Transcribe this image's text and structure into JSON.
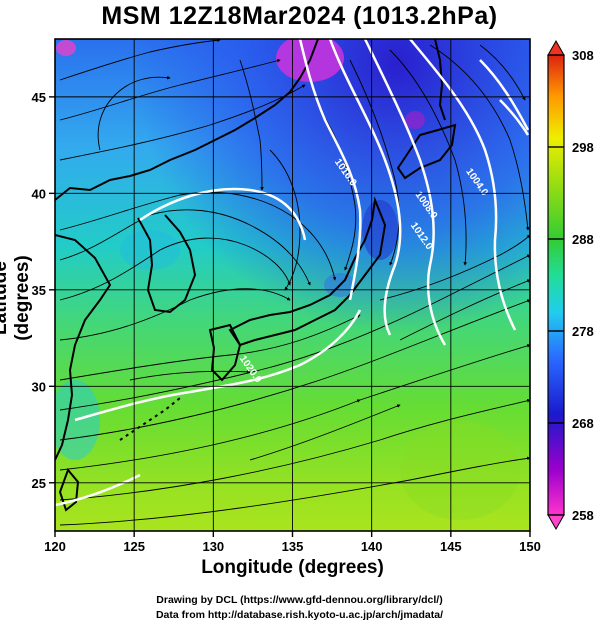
{
  "title": "MSM 12Z18Mar2024 (1013.2hPa)",
  "xlabel": "Longitude (degrees)",
  "ylabel": "Latitude  (degrees)",
  "x_ticks": [
    {
      "value": 120,
      "label": "120"
    },
    {
      "value": 125,
      "label": "125"
    },
    {
      "value": 130,
      "label": "130"
    },
    {
      "value": 135,
      "label": "135"
    },
    {
      "value": 140,
      "label": "140"
    },
    {
      "value": 145,
      "label": "145"
    },
    {
      "value": 150,
      "label": "150"
    }
  ],
  "y_ticks": [
    {
      "value": 25,
      "label": "25"
    },
    {
      "value": 30,
      "label": "30"
    },
    {
      "value": 35,
      "label": "35"
    },
    {
      "value": 40,
      "label": "40"
    },
    {
      "value": 45,
      "label": "45"
    }
  ],
  "colorbar": {
    "min": 258,
    "max": 308,
    "ticks": [
      {
        "value": 308,
        "label": "308"
      },
      {
        "value": 298,
        "label": "298"
      },
      {
        "value": 288,
        "label": "288"
      },
      {
        "value": 278,
        "label": "278"
      },
      {
        "value": 268,
        "label": "268"
      },
      {
        "value": 258,
        "label": "258"
      }
    ]
  },
  "contour_labels": [
    {
      "text": "1016.0",
      "lon": 138.2,
      "lat": 41.0
    },
    {
      "text": "1008.0",
      "lon": 143.3,
      "lat": 39.3
    },
    {
      "text": "1012.0",
      "lon": 143.0,
      "lat": 37.7
    },
    {
      "text": "1020.0",
      "lon": 132.2,
      "lat": 30.8
    },
    {
      "text": "1004.0",
      "lon": 146.5,
      "lat": 40.5
    }
  ],
  "credits": [
    "Drawing by DCL (https://www.gfd-dennou.org/library/dcl/)",
    "Data from http://database.rish.kyoto-u.ac.jp/arch/jmadata/"
  ]
}
